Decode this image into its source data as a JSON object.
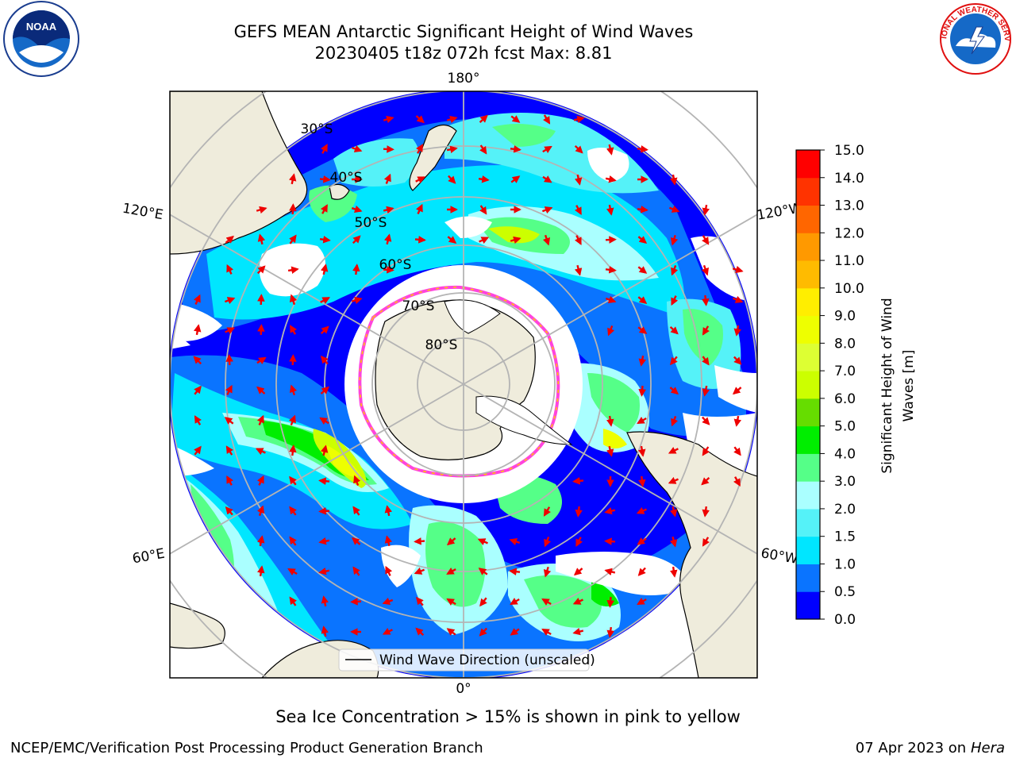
{
  "title": {
    "line1": "GEFS MEAN Antarctic Significant Height of Wind Waves",
    "line2": "20230405 t18z 072h fcst   Max: 8.81"
  },
  "map": {
    "projection": "south polar stereographic",
    "longitude_labels": [
      "180°",
      "120°E",
      "120°W",
      "60°E",
      "60°W",
      "0°"
    ],
    "latitude_labels": [
      "30°S",
      "40°S",
      "50°S",
      "60°S",
      "70°S",
      "80°S"
    ],
    "legend_label": "Wind Wave Direction (unscaled)",
    "colors": {
      "land": "#efecdc",
      "open_water": "#ffffff",
      "ice_edge": "#ff44dd",
      "arrow": "#ee0000"
    }
  },
  "colorbar": {
    "label": "Significant Height of Wind Waves [m]",
    "label_line1": "Significant Height of Wind",
    "label_line2": "Waves [m]",
    "ticks": [
      "0.0",
      "0.5",
      "1.0",
      "1.5",
      "2.0",
      "3.0",
      "4.0",
      "5.0",
      "6.0",
      "7.0",
      "8.0",
      "9.0",
      "10.0",
      "11.0",
      "12.0",
      "13.0",
      "14.0",
      "15.0"
    ],
    "bins": [
      {
        "range": "0.0-0.5",
        "color": "#0000ff"
      },
      {
        "range": "0.5-1.0",
        "color": "#0a74ff"
      },
      {
        "range": "1.0-1.5",
        "color": "#00e6ff"
      },
      {
        "range": "1.5-2.0",
        "color": "#55f2f8"
      },
      {
        "range": "2.0-3.0",
        "color": "#aaffff"
      },
      {
        "range": "3.0-4.0",
        "color": "#55ff88"
      },
      {
        "range": "4.0-5.0",
        "color": "#00ee00"
      },
      {
        "range": "5.0-6.0",
        "color": "#66dd00"
      },
      {
        "range": "6.0-7.0",
        "color": "#ccff00"
      },
      {
        "range": "7.0-8.0",
        "color": "#ddff33"
      },
      {
        "range": "8.0-9.0",
        "color": "#eeff00"
      },
      {
        "range": "9.0-10.0",
        "color": "#ffee00"
      },
      {
        "range": "10.0-11.0",
        "color": "#ffbb00"
      },
      {
        "range": "11.0-12.0",
        "color": "#ff9900"
      },
      {
        "range": "12.0-13.0",
        "color": "#ff6600"
      },
      {
        "range": "13.0-14.0",
        "color": "#ff3300"
      },
      {
        "range": "14.0-15.0",
        "color": "#ff0000"
      }
    ]
  },
  "footer": {
    "note": "Sea Ice Concentration > 15% is shown in pink to yellow",
    "credit": "NCEP/EMC/Verification Post Processing Product Generation Branch",
    "date": "07 Apr 2023 on",
    "machine": "Hera"
  },
  "logos": {
    "noaa_text": "NOAA",
    "nws_text": "NATIONAL WEATHER SERVICE"
  }
}
